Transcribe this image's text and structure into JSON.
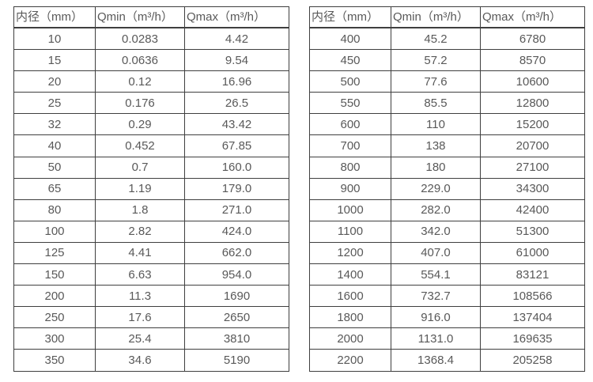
{
  "page": {
    "background_color": "#ffffff",
    "text_color": "#595959",
    "border_color": "#3f3f3f"
  },
  "left_table": {
    "headers": [
      "内径（mm）",
      "Qmin（m³/h）",
      "Qmax（m³/h）"
    ],
    "rows": [
      [
        "10",
        "0.0283",
        "4.42"
      ],
      [
        "15",
        "0.0636",
        "9.54"
      ],
      [
        "20",
        "0.12",
        "16.96"
      ],
      [
        "25",
        "0.176",
        "26.5"
      ],
      [
        "32",
        "0.29",
        "43.42"
      ],
      [
        "40",
        "0.452",
        "67.85"
      ],
      [
        "50",
        "0.7",
        "160.0"
      ],
      [
        "65",
        "1.19",
        "179.0"
      ],
      [
        "80",
        "1.8",
        "271.0"
      ],
      [
        "100",
        "2.82",
        "424.0"
      ],
      [
        "125",
        "4.41",
        "662.0"
      ],
      [
        "150",
        "6.63",
        "954.0"
      ],
      [
        "200",
        "11.3",
        "1690"
      ],
      [
        "250",
        "17.6",
        "2650"
      ],
      [
        "300",
        "25.4",
        "3810"
      ],
      [
        "350",
        "34.6",
        "5190"
      ]
    ]
  },
  "right_table": {
    "headers": [
      "内径（mm）",
      "Qmin（m³/h）",
      "Qmax（m³/h）"
    ],
    "rows": [
      [
        "400",
        "45.2",
        "6780"
      ],
      [
        "450",
        "57.2",
        "8570"
      ],
      [
        "500",
        "77.6",
        "10600"
      ],
      [
        "550",
        "85.5",
        "12800"
      ],
      [
        "600",
        "110",
        "15200"
      ],
      [
        "700",
        "138",
        "20700"
      ],
      [
        "800",
        "180",
        "27100"
      ],
      [
        "900",
        "229.0",
        "34300"
      ],
      [
        "1000",
        "282.0",
        "42400"
      ],
      [
        "1100",
        "342.0",
        "51300"
      ],
      [
        "1200",
        "407.0",
        "61000"
      ],
      [
        "1400",
        "554.1",
        "83121"
      ],
      [
        "1600",
        "732.7",
        "108566"
      ],
      [
        "1800",
        "916.0",
        "137404"
      ],
      [
        "2000",
        "1131.0",
        "169635"
      ],
      [
        "2200",
        "1368.4",
        "205258"
      ]
    ]
  }
}
